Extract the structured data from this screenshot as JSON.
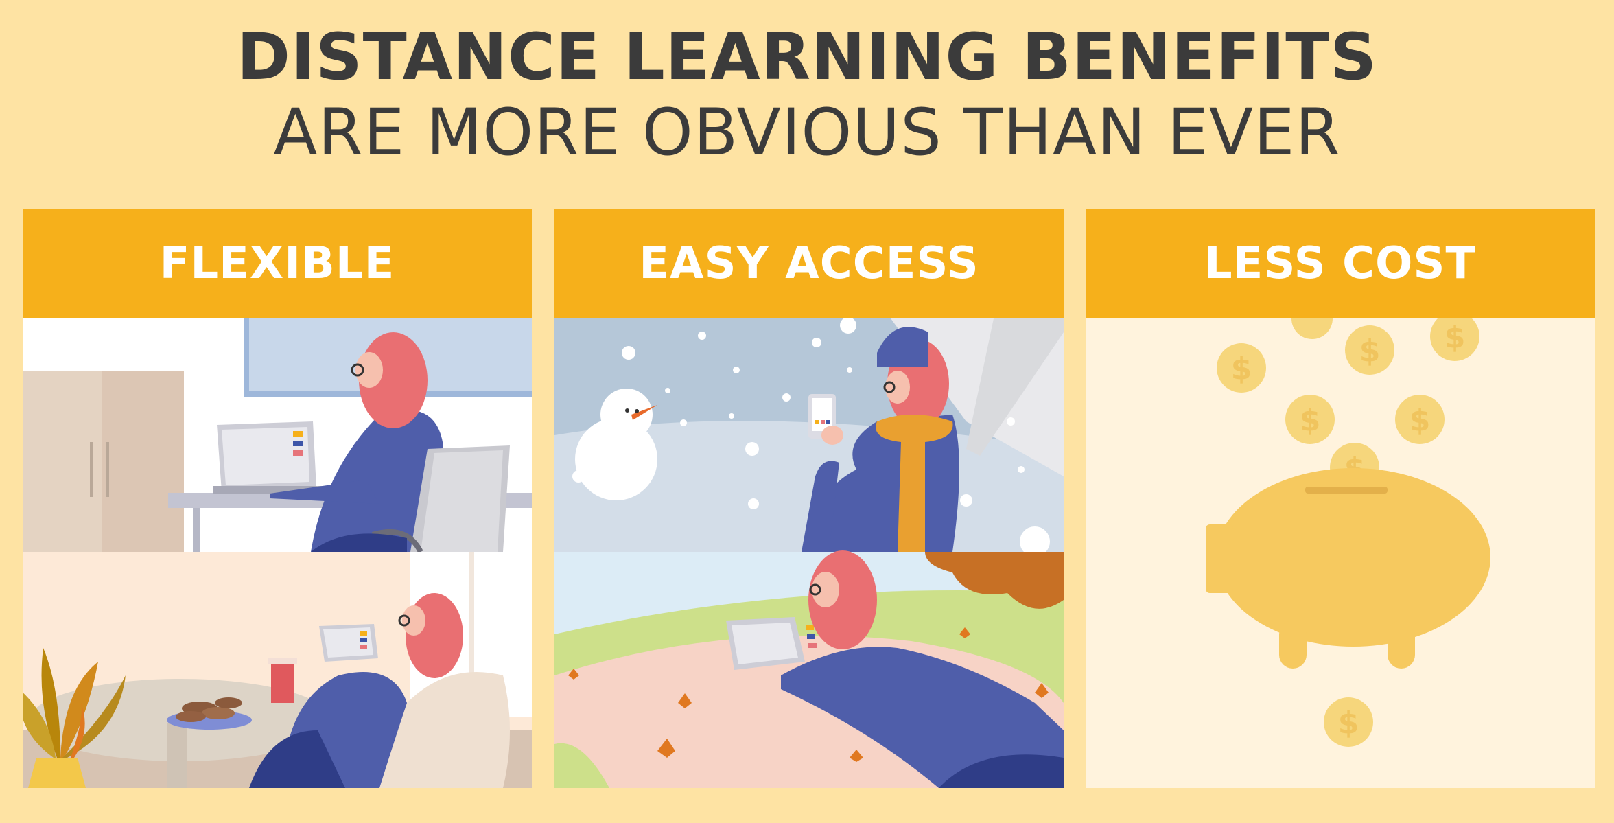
{
  "title": {
    "line1": "DISTANCE LEARNING BENEFITS",
    "line2": "ARE MORE OBVIOUS THAN EVER"
  },
  "panels": [
    {
      "label": "FLEXIBLE"
    },
    {
      "label": "EASY ACCESS"
    },
    {
      "label": "LESS COST"
    }
  ],
  "colors": {
    "background": "#fee3a3",
    "header": "#f6b01b",
    "title_text": "#3b3b3b",
    "header_text": "#ffffff"
  }
}
